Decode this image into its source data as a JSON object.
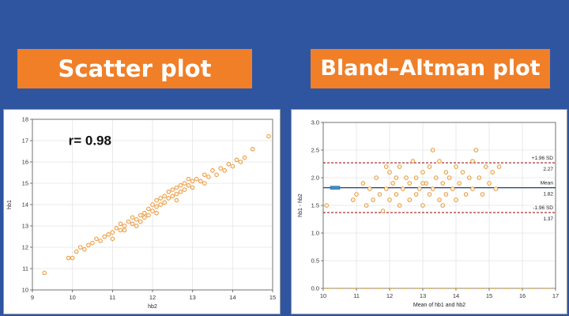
{
  "banners": {
    "left": "Scatter plot",
    "right": "Bland–Altman plot"
  },
  "colors": {
    "background": "#2f55a0",
    "banner": "#f07f28",
    "points": "#e8902a",
    "mean_line": "#1f3d73",
    "sd_line": "#9b1c1c",
    "zero_line": "#d49a1a"
  },
  "chart_data": [
    {
      "type": "scatter",
      "title": "",
      "xlabel": "hb2",
      "ylabel": "hb1",
      "xlim": [
        9,
        15
      ],
      "ylim": [
        10,
        18
      ],
      "xticks": [
        "9",
        "10",
        "11",
        "12",
        "13",
        "14",
        "15"
      ],
      "yticks": [
        "10",
        "11",
        "12",
        "13",
        "14",
        "15",
        "16",
        "17",
        "18"
      ],
      "grid": true,
      "annotation": "r= 0.98",
      "points": [
        [
          9.3,
          10.8
        ],
        [
          9.9,
          11.5
        ],
        [
          10.0,
          11.5
        ],
        [
          10.1,
          11.8
        ],
        [
          10.2,
          12.0
        ],
        [
          10.3,
          11.9
        ],
        [
          10.4,
          12.1
        ],
        [
          10.5,
          12.2
        ],
        [
          10.6,
          12.4
        ],
        [
          10.7,
          12.3
        ],
        [
          10.8,
          12.5
        ],
        [
          10.9,
          12.6
        ],
        [
          11.0,
          12.7
        ],
        [
          11.0,
          12.4
        ],
        [
          11.1,
          12.9
        ],
        [
          11.2,
          12.8
        ],
        [
          11.2,
          13.1
        ],
        [
          11.3,
          13.0
        ],
        [
          11.4,
          13.2
        ],
        [
          11.5,
          13.1
        ],
        [
          11.5,
          13.4
        ],
        [
          11.6,
          13.3
        ],
        [
          11.7,
          13.5
        ],
        [
          11.7,
          13.2
        ],
        [
          11.8,
          13.6
        ],
        [
          11.8,
          13.4
        ],
        [
          11.9,
          13.8
        ],
        [
          11.9,
          13.5
        ],
        [
          12.0,
          13.7
        ],
        [
          12.0,
          14.0
        ],
        [
          12.1,
          13.9
        ],
        [
          12.1,
          14.2
        ],
        [
          12.2,
          14.0
        ],
        [
          12.2,
          14.3
        ],
        [
          12.3,
          14.1
        ],
        [
          12.3,
          14.4
        ],
        [
          12.4,
          14.3
        ],
        [
          12.4,
          14.6
        ],
        [
          12.5,
          14.4
        ],
        [
          12.5,
          14.7
        ],
        [
          12.6,
          14.5
        ],
        [
          12.6,
          14.8
        ],
        [
          12.7,
          14.6
        ],
        [
          12.7,
          14.9
        ],
        [
          12.8,
          14.7
        ],
        [
          12.8,
          15.0
        ],
        [
          12.9,
          14.9
        ],
        [
          13.0,
          15.1
        ],
        [
          13.0,
          14.8
        ],
        [
          13.1,
          15.2
        ],
        [
          13.2,
          15.1
        ],
        [
          13.3,
          15.4
        ],
        [
          13.4,
          15.3
        ],
        [
          13.5,
          15.6
        ],
        [
          13.6,
          15.4
        ],
        [
          13.7,
          15.7
        ],
        [
          13.8,
          15.6
        ],
        [
          13.9,
          15.9
        ],
        [
          14.0,
          15.8
        ],
        [
          14.1,
          16.1
        ],
        [
          14.2,
          16.0
        ],
        [
          14.3,
          16.2
        ],
        [
          14.5,
          16.6
        ],
        [
          14.9,
          17.2
        ],
        [
          11.6,
          13.0
        ],
        [
          12.1,
          13.6
        ],
        [
          12.6,
          14.2
        ],
        [
          11.3,
          12.8
        ],
        [
          13.3,
          15.0
        ],
        [
          12.9,
          15.2
        ]
      ]
    },
    {
      "type": "scatter",
      "title": "",
      "xlabel": "Mean of hb1 and hb2",
      "ylabel": "hb1 - hb2",
      "xlim": [
        10,
        17
      ],
      "ylim": [
        0.0,
        3.0
      ],
      "xticks": [
        "10",
        "11",
        "12",
        "13",
        "14",
        "15",
        "16",
        "17"
      ],
      "yticks": [
        "0.0",
        "0.5",
        "1.0",
        "1.5",
        "2.0",
        "2.5",
        "3.0"
      ],
      "grid": true,
      "lines": [
        {
          "label": "+1.96 SD",
          "value_label": "2.27",
          "y": 2.27,
          "style": "dashed"
        },
        {
          "label": "Mean",
          "value_label": "1.82",
          "y": 1.82,
          "style": "solid"
        },
        {
          "label": "-1.96 SD",
          "value_label": "1.37",
          "y": 1.37,
          "style": "dashed"
        },
        {
          "label": "",
          "value_label": "",
          "y": 0.0,
          "style": "dotted"
        }
      ],
      "points": [
        [
          10.1,
          1.5
        ],
        [
          10.9,
          1.6
        ],
        [
          11.0,
          1.7
        ],
        [
          11.2,
          1.9
        ],
        [
          11.3,
          1.5
        ],
        [
          11.4,
          1.8
        ],
        [
          11.5,
          1.6
        ],
        [
          11.6,
          2.0
        ],
        [
          11.7,
          1.7
        ],
        [
          11.8,
          1.4
        ],
        [
          11.9,
          1.8
        ],
        [
          12.0,
          2.1
        ],
        [
          12.0,
          1.6
        ],
        [
          12.1,
          1.9
        ],
        [
          12.2,
          1.7
        ],
        [
          12.3,
          2.2
        ],
        [
          12.3,
          1.5
        ],
        [
          12.4,
          1.8
        ],
        [
          12.5,
          2.0
        ],
        [
          12.6,
          1.6
        ],
        [
          12.6,
          1.9
        ],
        [
          12.7,
          2.3
        ],
        [
          12.8,
          1.7
        ],
        [
          12.8,
          2.0
        ],
        [
          12.9,
          1.8
        ],
        [
          13.0,
          2.1
        ],
        [
          13.0,
          1.5
        ],
        [
          13.1,
          1.9
        ],
        [
          13.2,
          2.2
        ],
        [
          13.2,
          1.7
        ],
        [
          13.3,
          2.5
        ],
        [
          13.3,
          1.8
        ],
        [
          13.4,
          2.0
        ],
        [
          13.5,
          1.6
        ],
        [
          13.5,
          2.3
        ],
        [
          13.6,
          1.9
        ],
        [
          13.7,
          2.1
        ],
        [
          13.7,
          1.7
        ],
        [
          13.8,
          2.0
        ],
        [
          13.9,
          1.8
        ],
        [
          14.0,
          2.2
        ],
        [
          14.0,
          1.6
        ],
        [
          14.1,
          1.9
        ],
        [
          14.2,
          2.1
        ],
        [
          14.3,
          1.7
        ],
        [
          14.4,
          2.0
        ],
        [
          14.5,
          2.3
        ],
        [
          14.5,
          1.8
        ],
        [
          14.6,
          2.5
        ],
        [
          14.7,
          2.0
        ],
        [
          14.8,
          1.7
        ],
        [
          14.9,
          2.2
        ],
        [
          15.0,
          1.9
        ],
        [
          15.1,
          2.1
        ],
        [
          15.2,
          1.8
        ],
        [
          15.3,
          2.2
        ],
        [
          12.2,
          2.0
        ],
        [
          13.6,
          1.5
        ],
        [
          11.9,
          2.2
        ],
        [
          13.0,
          1.9
        ]
      ]
    }
  ]
}
